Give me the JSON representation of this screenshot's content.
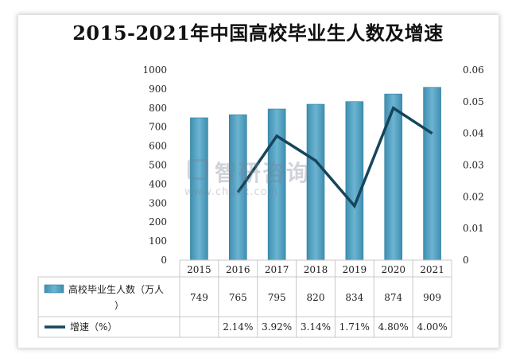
{
  "chart_data": {
    "type": "bar",
    "title": "2015-2021年中国高校毕业生人数及增速",
    "categories": [
      "2015",
      "2016",
      "2017",
      "2018",
      "2019",
      "2020",
      "2021"
    ],
    "series": [
      {
        "name": "高校毕业生人数（万人）",
        "type": "bar",
        "axis": "left",
        "values": [
          749,
          765,
          795,
          820,
          834,
          874,
          909
        ],
        "labels": [
          "749",
          "765",
          "795",
          "820",
          "834",
          "874",
          "909"
        ]
      },
      {
        "name": "增速（%）",
        "type": "line",
        "axis": "right",
        "values": [
          null,
          0.0214,
          0.0392,
          0.0314,
          0.0171,
          0.048,
          0.04
        ],
        "labels": [
          "",
          "2.14%",
          "3.92%",
          "3.14%",
          "1.71%",
          "4.80%",
          "4.00%"
        ]
      }
    ],
    "y_left": {
      "min": 0,
      "max": 1000,
      "ticks": [
        "0",
        "100",
        "200",
        "300",
        "400",
        "500",
        "600",
        "700",
        "800",
        "900",
        "1000"
      ]
    },
    "y_right": {
      "min": 0,
      "max": 0.06,
      "ticks": [
        "0",
        "0.01",
        "0.02",
        "0.03",
        "0.04",
        "0.05",
        "0.06"
      ]
    },
    "data_table": true,
    "colors": {
      "bar": "#4f9fc0",
      "bar_dark": "#2f7f9f",
      "line": "#17455c",
      "grid": "#d9d9d9"
    }
  },
  "watermark": {
    "brand": "智研咨询",
    "url": "www.chyxx.com"
  }
}
